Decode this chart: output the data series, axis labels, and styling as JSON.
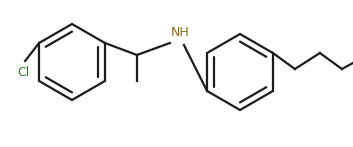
{
  "bg_color": "#ffffff",
  "line_color": "#1c1c1c",
  "cl_label_color": "#3a7a3a",
  "nh_label_color": "#8b6914",
  "bond_lw": 1.6,
  "figsize": [
    3.53,
    1.47
  ],
  "dpi": 100
}
